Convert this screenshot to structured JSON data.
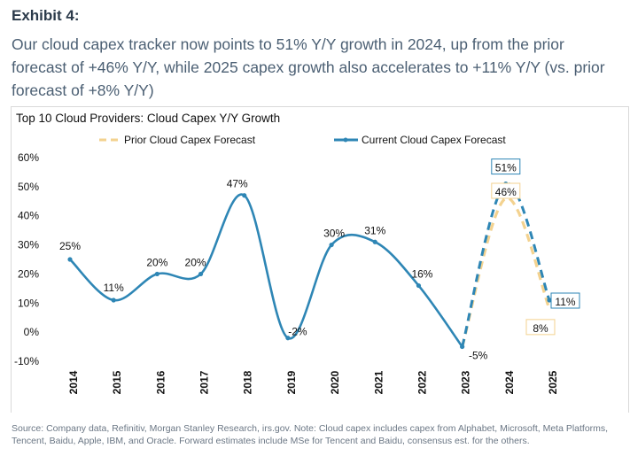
{
  "exhibit_label": "Exhibit 4:",
  "headline": "Our cloud capex tracker now points to 51% Y/Y growth in 2024, up from the prior forecast of +46% Y/Y, while 2025 capex growth also accelerates to +11% Y/Y (vs. prior forecast of +8% Y/Y)",
  "source_note": "Source: Company data, Refinitiv, Morgan Stanley Research, irs.gov. Note: Cloud capex includes capex from Alphabet, Microsoft, Meta Platforms, Tencent, Baidu, Apple, IBM, and Oracle. Forward estimates include MSe for Tencent and Baidu, consensus est. for the others.",
  "chart_data": {
    "type": "line",
    "title": "Top 10 Cloud Providers: Cloud Capex Y/Y Growth",
    "xlabel": "",
    "ylabel": "",
    "ylim": [
      -10,
      60
    ],
    "yticks": [
      "60%",
      "50%",
      "40%",
      "30%",
      "20%",
      "10%",
      "0%",
      "-10%"
    ],
    "ytick_values": [
      60,
      50,
      40,
      30,
      20,
      10,
      0,
      -10
    ],
    "categories": [
      "2014",
      "2015",
      "2016",
      "2017",
      "2018",
      "2019",
      "2020",
      "2021",
      "2022",
      "2023",
      "2024",
      "2025"
    ],
    "legend": {
      "placement": "top",
      "entries": [
        "Prior Cloud Capex Forecast",
        "Current Cloud Capex Forecast"
      ]
    },
    "series": [
      {
        "name": "Current Cloud Capex Forecast",
        "color": "#2e86b5",
        "values": [
          25,
          11,
          20,
          20,
          47,
          -2,
          30,
          31,
          16,
          -5,
          51,
          11
        ],
        "labels": [
          "25%",
          "11%",
          "20%",
          "20%",
          "47%",
          "-2%",
          "30%",
          "31%",
          "16%",
          "-5%",
          "51%",
          "11%"
        ],
        "solid_through": "2023",
        "dashed_from": "2023"
      },
      {
        "name": "Prior Cloud Capex Forecast",
        "color": "#f3d28f",
        "values": [
          null,
          null,
          null,
          null,
          null,
          null,
          null,
          null,
          null,
          -5,
          46,
          8
        ],
        "labels": [
          "",
          "",
          "",
          "",
          "",
          "",
          "",
          "",
          "",
          "",
          "46%",
          "8%"
        ]
      }
    ]
  }
}
